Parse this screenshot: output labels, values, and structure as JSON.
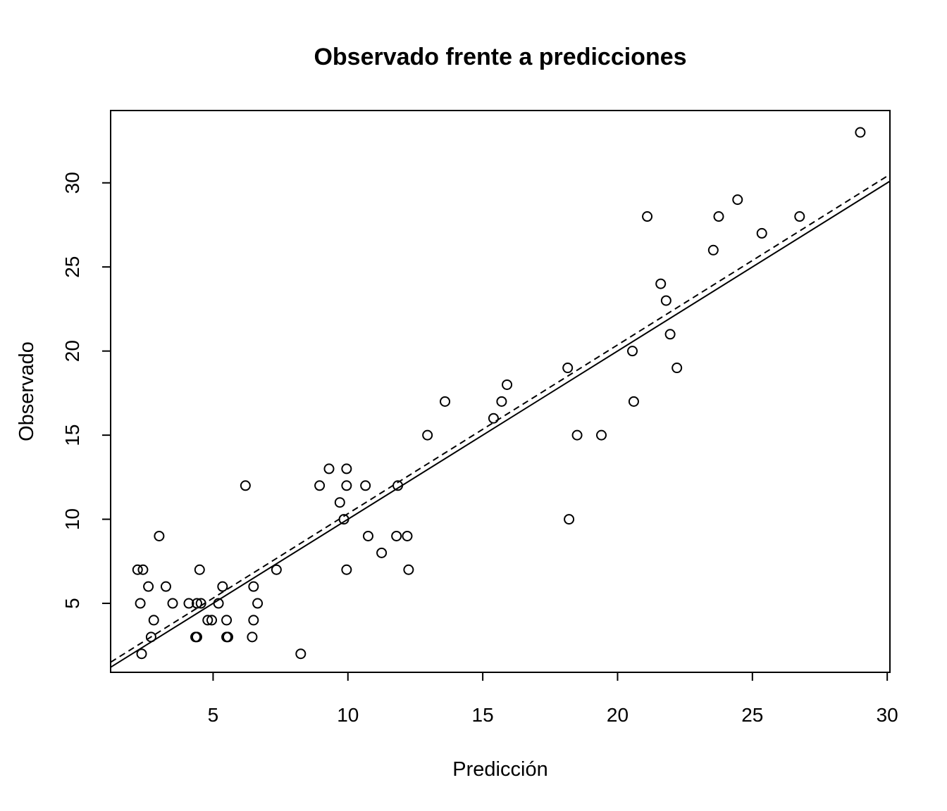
{
  "chart_data": {
    "type": "scatter",
    "title": "Observado frente a predicciones",
    "xlabel": "Predicción",
    "ylabel": "Observado",
    "xlim": [
      1.2,
      30.1
    ],
    "ylim": [
      0.9,
      34.3
    ],
    "xticks": [
      5,
      10,
      15,
      20,
      25,
      30
    ],
    "yticks": [
      5,
      10,
      15,
      20,
      25,
      30
    ],
    "grid": false,
    "points": [
      {
        "x": 2.2,
        "y": 7
      },
      {
        "x": 2.4,
        "y": 7
      },
      {
        "x": 2.3,
        "y": 5
      },
      {
        "x": 2.6,
        "y": 6
      },
      {
        "x": 2.35,
        "y": 2
      },
      {
        "x": 2.7,
        "y": 3
      },
      {
        "x": 2.8,
        "y": 4
      },
      {
        "x": 3.0,
        "y": 9
      },
      {
        "x": 3.25,
        "y": 6
      },
      {
        "x": 3.5,
        "y": 5
      },
      {
        "x": 4.1,
        "y": 5
      },
      {
        "x": 4.35,
        "y": 3
      },
      {
        "x": 4.4,
        "y": 3
      },
      {
        "x": 4.4,
        "y": 5
      },
      {
        "x": 4.5,
        "y": 7
      },
      {
        "x": 4.55,
        "y": 5
      },
      {
        "x": 4.8,
        "y": 4
      },
      {
        "x": 4.95,
        "y": 4
      },
      {
        "x": 5.2,
        "y": 5
      },
      {
        "x": 5.35,
        "y": 6
      },
      {
        "x": 5.5,
        "y": 4
      },
      {
        "x": 5.5,
        "y": 3
      },
      {
        "x": 5.55,
        "y": 3
      },
      {
        "x": 6.2,
        "y": 12
      },
      {
        "x": 6.45,
        "y": 3
      },
      {
        "x": 6.5,
        "y": 4
      },
      {
        "x": 6.5,
        "y": 6
      },
      {
        "x": 6.65,
        "y": 5
      },
      {
        "x": 7.35,
        "y": 7
      },
      {
        "x": 8.25,
        "y": 2
      },
      {
        "x": 8.95,
        "y": 12
      },
      {
        "x": 9.3,
        "y": 13
      },
      {
        "x": 9.7,
        "y": 11
      },
      {
        "x": 9.85,
        "y": 10
      },
      {
        "x": 9.95,
        "y": 7
      },
      {
        "x": 9.95,
        "y": 12
      },
      {
        "x": 9.95,
        "y": 13
      },
      {
        "x": 10.65,
        "y": 12
      },
      {
        "x": 10.75,
        "y": 9
      },
      {
        "x": 11.25,
        "y": 8
      },
      {
        "x": 11.8,
        "y": 9
      },
      {
        "x": 11.85,
        "y": 12
      },
      {
        "x": 12.2,
        "y": 9
      },
      {
        "x": 12.25,
        "y": 7
      },
      {
        "x": 12.95,
        "y": 15
      },
      {
        "x": 13.6,
        "y": 17
      },
      {
        "x": 15.4,
        "y": 16
      },
      {
        "x": 15.7,
        "y": 17
      },
      {
        "x": 15.9,
        "y": 18
      },
      {
        "x": 18.15,
        "y": 19
      },
      {
        "x": 18.2,
        "y": 10
      },
      {
        "x": 18.5,
        "y": 15
      },
      {
        "x": 19.4,
        "y": 15
      },
      {
        "x": 20.55,
        "y": 20
      },
      {
        "x": 20.6,
        "y": 17
      },
      {
        "x": 21.1,
        "y": 28
      },
      {
        "x": 21.6,
        "y": 24
      },
      {
        "x": 21.8,
        "y": 23
      },
      {
        "x": 21.95,
        "y": 21
      },
      {
        "x": 22.2,
        "y": 19
      },
      {
        "x": 23.55,
        "y": 26
      },
      {
        "x": 23.75,
        "y": 28
      },
      {
        "x": 24.45,
        "y": 29
      },
      {
        "x": 25.35,
        "y": 27
      },
      {
        "x": 26.75,
        "y": 28
      },
      {
        "x": 29.0,
        "y": 33
      }
    ],
    "lines": [
      {
        "style": "solid",
        "x": [
          1.2,
          30.1
        ],
        "y": [
          1.2,
          30.1
        ]
      },
      {
        "style": "dashed",
        "x": [
          1.2,
          30.1
        ],
        "y": [
          1.5,
          30.5
        ]
      }
    ]
  }
}
